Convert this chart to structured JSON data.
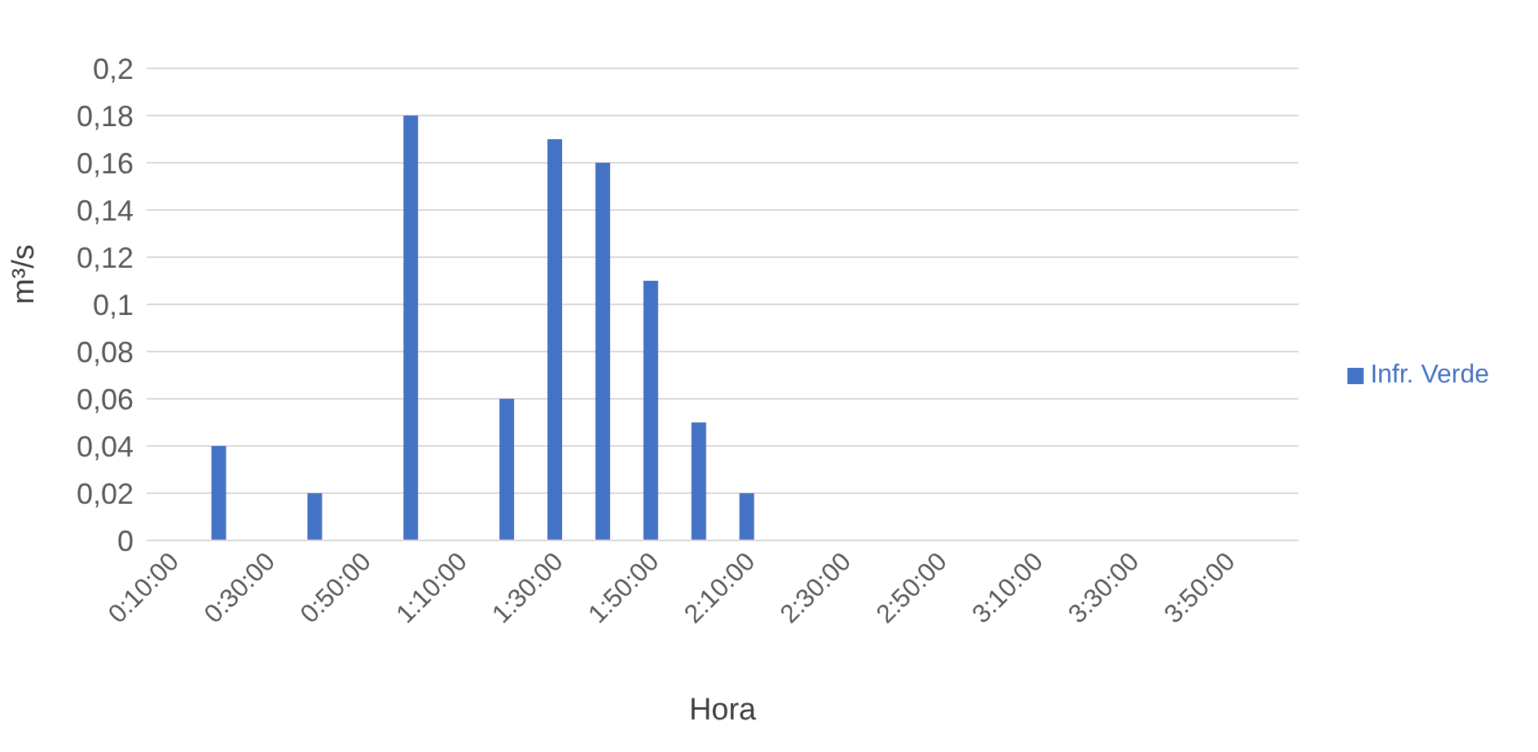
{
  "chart_data": {
    "type": "bar",
    "xlabel": "Hora",
    "ylabel": "m³/s",
    "categories": [
      "0:10:00",
      null,
      "0:30:00",
      null,
      "0:50:00",
      null,
      "1:10:00",
      null,
      "1:30:00",
      null,
      "1:50:00",
      null,
      "2:10:00",
      null,
      "2:30:00",
      null,
      "2:50:00",
      null,
      "3:10:00",
      null,
      "3:30:00",
      null,
      "3:50:00",
      null
    ],
    "series": [
      {
        "name": "Infr. Verde",
        "color": "#4472c4",
        "values": [
          null,
          0.04,
          null,
          0.02,
          null,
          0.18,
          null,
          0.06,
          0.17,
          0.16,
          0.11,
          0.05,
          0.02,
          null,
          null,
          null,
          null,
          null,
          null,
          null,
          null,
          null,
          null,
          null
        ]
      }
    ],
    "ylim": [
      0,
      0.2
    ],
    "yticks": [
      0,
      {
        "value": 0.02,
        "label": "0,02"
      },
      {
        "value": 0.04,
        "label": "0,04"
      },
      {
        "value": 0.06,
        "label": "0,06"
      },
      {
        "value": 0.08,
        "label": "0,08"
      },
      {
        "value": 0.1,
        "label": "0,1"
      },
      {
        "value": 0.12,
        "label": "0,12"
      },
      {
        "value": 0.14,
        "label": "0,14"
      },
      {
        "value": 0.16,
        "label": "0,16"
      },
      {
        "value": 0.18,
        "label": "0,18"
      },
      {
        "value": 0.2,
        "label": "0,2"
      }
    ],
    "grid": "y",
    "legend": "right"
  }
}
